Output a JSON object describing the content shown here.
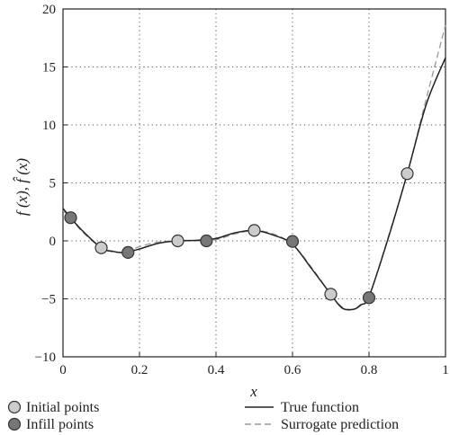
{
  "chart_data": {
    "type": "line",
    "xlabel": "x",
    "ylabel": "f (x), f̂ (x)",
    "xlim": [
      0,
      1
    ],
    "ylim": [
      -10,
      20
    ],
    "x_ticks": [
      "0",
      "0.2",
      "0.4",
      "0.6",
      "0.8",
      "1"
    ],
    "y_ticks": [
      "−10",
      "−5",
      "0",
      "5",
      "10",
      "15",
      "20"
    ],
    "grid": true,
    "legend_position": "bottom",
    "series": [
      {
        "name": "True function",
        "style": "solid",
        "color": "#222222",
        "x": [
          0,
          0.02,
          0.05,
          0.1,
          0.13,
          0.16,
          0.2,
          0.25,
          0.3,
          0.35,
          0.4,
          0.45,
          0.5,
          0.55,
          0.6,
          0.65,
          0.7,
          0.73,
          0.76,
          0.78,
          0.8,
          0.85,
          0.9,
          0.95,
          1.0
        ],
        "y": [
          2.8,
          2.0,
          0.9,
          -0.6,
          -0.9,
          -1.0,
          -0.7,
          -0.2,
          0.0,
          0.05,
          0.2,
          0.7,
          0.9,
          0.5,
          -0.3,
          -2.4,
          -4.6,
          -5.8,
          -5.9,
          -5.5,
          -4.8,
          0.2,
          5.8,
          11.8,
          15.8
        ]
      },
      {
        "name": "Surrogate prediction",
        "style": "dashed",
        "color": "#999999",
        "x": [
          0,
          0.02,
          0.05,
          0.1,
          0.13,
          0.16,
          0.2,
          0.25,
          0.3,
          0.35,
          0.4,
          0.45,
          0.5,
          0.55,
          0.6,
          0.65,
          0.7,
          0.73,
          0.76,
          0.78,
          0.8,
          0.85,
          0.9,
          0.95,
          1.0
        ],
        "y": [
          2.6,
          2.0,
          0.8,
          -0.6,
          -0.95,
          -0.95,
          -0.5,
          -0.1,
          0.0,
          0.0,
          0.1,
          0.6,
          0.9,
          0.6,
          -0.3,
          -2.3,
          -4.6,
          -5.7,
          -5.9,
          -5.4,
          -4.8,
          0.3,
          5.8,
          12.3,
          18.6
        ]
      }
    ],
    "points": [
      {
        "name": "Initial points",
        "color": "#cccccc",
        "x": [
          0.1,
          0.3,
          0.5,
          0.7,
          0.9
        ],
        "y": [
          -0.6,
          0.0,
          0.9,
          -4.6,
          5.8
        ]
      },
      {
        "name": "Infill points",
        "color": "#777777",
        "x": [
          0.02,
          0.17,
          0.375,
          0.6,
          0.8
        ],
        "y": [
          2.0,
          -1.0,
          0.0,
          -0.05,
          -4.9
        ]
      }
    ]
  }
}
